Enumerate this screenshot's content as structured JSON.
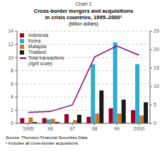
{
  "chart_data": {
    "type": "bar",
    "title": "Cross-border mergers and acquisitions\nin crisis countries, 1995–2000¹",
    "subtitle": "(billion dollars)",
    "annotations": [
      "Chart 1",
      "Source: Thomson Financial Securities Data.\n¹ Includes all cross-border acquisitions."
    ],
    "categories": [
      "1995",
      "96",
      "97",
      "98",
      "99",
      "2000"
    ],
    "series": [
      {
        "name": "Indonesia",
        "color": "#a0002a",
        "values": [
          0.8,
          0.8,
          1.4,
          1.0,
          2.3,
          2.0
        ]
      },
      {
        "name": "Korea",
        "color": "#2aadcf",
        "values": [
          0.1,
          0.6,
          0.1,
          9.0,
          12.3,
          9.0
        ]
      },
      {
        "name": "Malaysia",
        "color": "#c87830",
        "values": [
          0.9,
          0.7,
          0.5,
          1.5,
          1.5,
          1.2
        ]
      },
      {
        "name": "Thailand",
        "color": "#1a1a1a",
        "values": [
          0.2,
          0.2,
          1.3,
          5.0,
          3.6,
          3.2
        ]
      },
      {
        "name": "Total transactions\n(right scale)",
        "color": "#8b008b",
        "values": [
          3.0,
          3.2,
          5.0,
          18.0,
          21.0,
          18.5
        ],
        "type": "line",
        "axis": "y2"
      }
    ],
    "ylim": [
      0,
      14
    ],
    "yticks": [
      0,
      2,
      4,
      6,
      8,
      10,
      12,
      14
    ],
    "y2lim": [
      0,
      25
    ],
    "y2ticks": [
      0,
      5,
      10,
      15,
      20,
      25
    ],
    "grid": true,
    "legend": "upper left"
  }
}
